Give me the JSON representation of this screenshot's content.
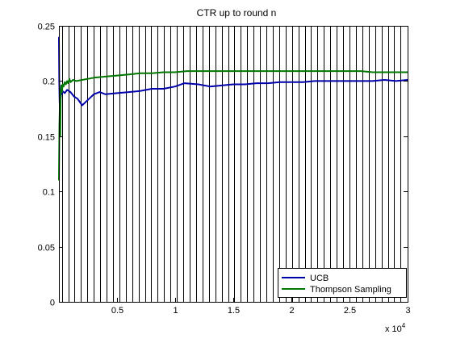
{
  "chart_data": {
    "type": "line",
    "title": "CTR up to round n",
    "xlabel": "",
    "ylabel": "",
    "x_multiplier_label": "x 10",
    "x_multiplier_exponent": "4",
    "xlim": [
      0,
      30000
    ],
    "ylim": [
      0,
      0.25
    ],
    "x_ticks": [
      5000,
      10000,
      15000,
      20000,
      25000,
      30000
    ],
    "x_tick_labels": [
      "0.5",
      "1",
      "1.5",
      "2",
      "2.5",
      "3"
    ],
    "y_ticks": [
      0,
      0.05,
      0.1,
      0.15,
      0.2,
      0.25
    ],
    "y_tick_labels": [
      "0",
      "0.05",
      "0.1",
      "0.15",
      "0.2",
      "0.25"
    ],
    "vertical_lines": [
      250,
      800,
      1300,
      1900,
      2450,
      3000,
      3550,
      4100,
      4650,
      5200,
      5750,
      6300,
      6850,
      7400,
      7950,
      8500,
      9050,
      9600,
      10150,
      10700,
      11250,
      11800,
      12350,
      12900,
      13450,
      14000,
      14550,
      15100,
      15650,
      16200,
      16750,
      17300,
      17850,
      18400,
      18950,
      19500,
      20050,
      20600,
      21150,
      21700,
      22250,
      22800,
      23350,
      23900,
      24450,
      25000,
      25550,
      26100,
      26650,
      27200,
      27750,
      28300,
      28850,
      29400
    ],
    "legend_position": "bottom-right",
    "series": [
      {
        "name": "UCB",
        "color": "#0000aa",
        "x": [
          1,
          30,
          60,
          100,
          150,
          200,
          250,
          300,
          400,
          500,
          700,
          1000,
          1300,
          1600,
          2000,
          2500,
          3000,
          3500,
          4000,
          5000,
          6000,
          7000,
          8000,
          9000,
          10000,
          10800,
          12000,
          13000,
          14000,
          15000,
          16000,
          17000,
          18000,
          19000,
          20000,
          21000,
          22000,
          23000,
          24000,
          25000,
          26000,
          27000,
          28000,
          29000,
          30000
        ],
        "y": [
          0.24,
          0.2,
          0.18,
          0.19,
          0.185,
          0.192,
          0.188,
          0.191,
          0.19,
          0.189,
          0.192,
          0.19,
          0.186,
          0.184,
          0.178,
          0.183,
          0.188,
          0.19,
          0.188,
          0.189,
          0.19,
          0.191,
          0.193,
          0.193,
          0.195,
          0.198,
          0.197,
          0.195,
          0.196,
          0.197,
          0.197,
          0.198,
          0.198,
          0.199,
          0.199,
          0.199,
          0.2,
          0.2,
          0.2,
          0.2,
          0.2,
          0.2,
          0.201,
          0.2,
          0.201
        ]
      },
      {
        "name": "Thompson Sampling",
        "color": "#007700",
        "x": [
          1,
          40,
          80,
          120,
          160,
          200,
          260,
          320,
          400,
          500,
          600,
          700,
          800,
          900,
          1000,
          1200,
          1500,
          2000,
          2500,
          3000,
          4000,
          5000,
          6000,
          7000,
          8000,
          9000,
          10000,
          11000,
          12000,
          13000,
          14000,
          15000,
          16000,
          17000,
          18000,
          19000,
          20000,
          21000,
          22000,
          23000,
          24000,
          25000,
          26000,
          27000,
          28000,
          29000,
          30000
        ],
        "y": [
          0.11,
          0.16,
          0.18,
          0.15,
          0.19,
          0.196,
          0.19,
          0.197,
          0.195,
          0.199,
          0.197,
          0.2,
          0.198,
          0.202,
          0.199,
          0.201,
          0.2,
          0.201,
          0.202,
          0.203,
          0.204,
          0.205,
          0.206,
          0.207,
          0.207,
          0.208,
          0.208,
          0.209,
          0.209,
          0.209,
          0.209,
          0.209,
          0.209,
          0.209,
          0.209,
          0.209,
          0.209,
          0.209,
          0.209,
          0.209,
          0.209,
          0.209,
          0.209,
          0.208,
          0.208,
          0.208,
          0.208
        ]
      }
    ]
  }
}
